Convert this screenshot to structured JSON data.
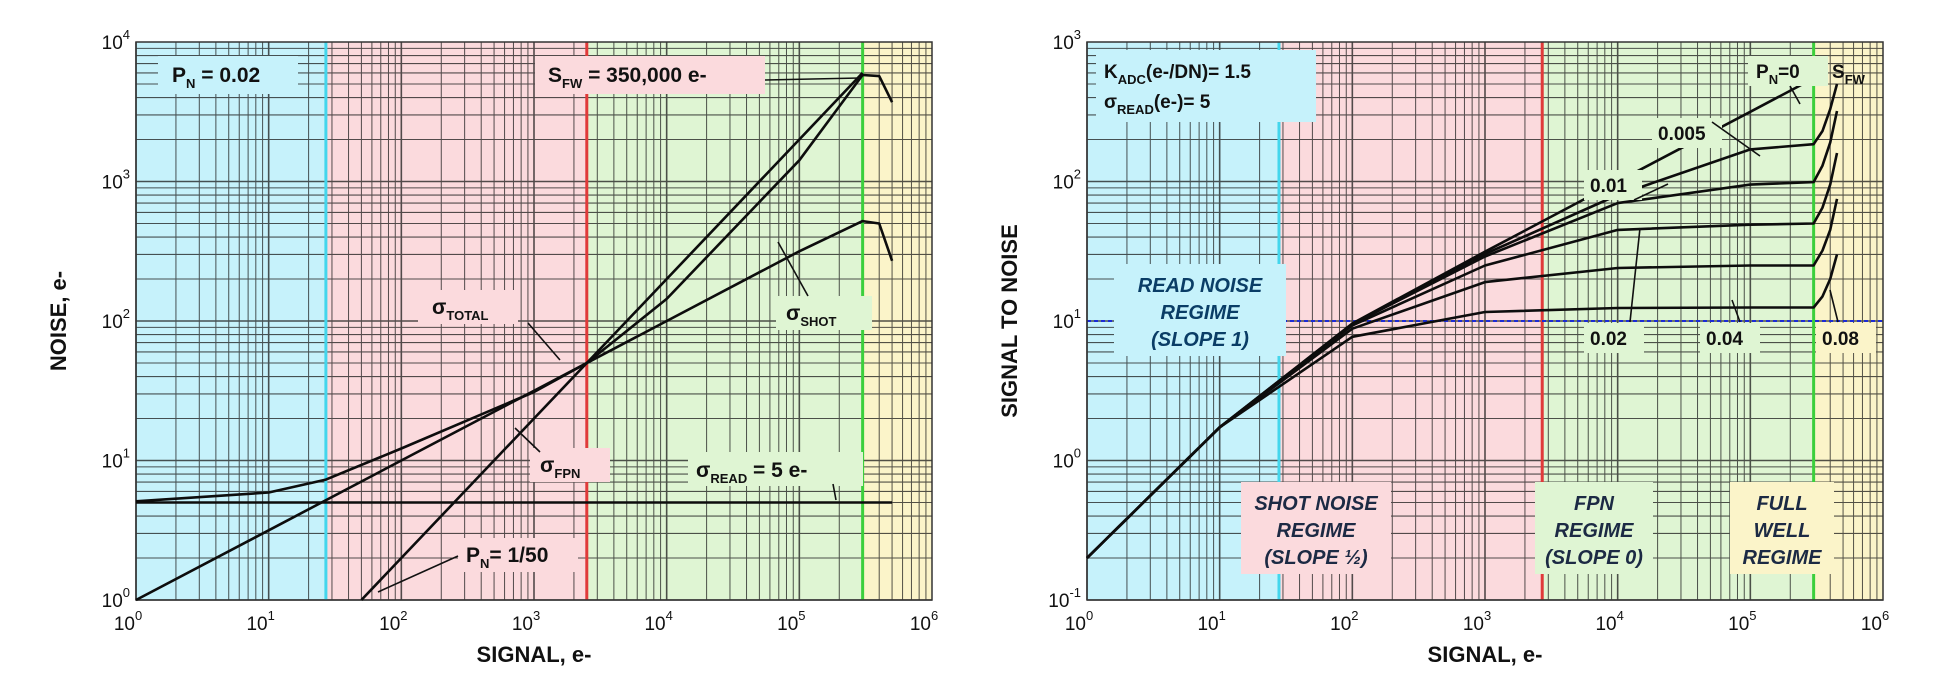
{
  "chart_data": [
    {
      "type": "line",
      "scale": "log-log",
      "xlabel": "SIGNAL, e-",
      "ylabel": "NOISE, e-",
      "xlim": [
        1,
        1000000
      ],
      "ylim": [
        1,
        10000
      ],
      "x_ticks": [
        "10",
        "10",
        "10",
        "10",
        "10",
        "10",
        "10"
      ],
      "x_tick_exps": [
        "0",
        "1",
        "2",
        "3",
        "4",
        "5",
        "6"
      ],
      "y_ticks": [
        "10",
        "10",
        "10",
        "10",
        "10"
      ],
      "y_tick_exps": [
        "0",
        "1",
        "2",
        "3",
        "4"
      ],
      "regions": [
        {
          "from": 1,
          "to": 27,
          "color": "#c6f2fb"
        },
        {
          "from": 27,
          "to": 2500,
          "color": "#fbdadd"
        },
        {
          "from": 2500,
          "to": 300000,
          "color": "#dff5d3"
        },
        {
          "from": 300000,
          "to": 1000000,
          "color": "#fbf4c9"
        }
      ],
      "boundaries": [
        {
          "x": 27,
          "color": "#44d6ec"
        },
        {
          "x": 2500,
          "color": "#e03a3a"
        },
        {
          "x": 300000,
          "color": "#3ccf3c"
        }
      ],
      "series": [
        {
          "name": "σ_TOTAL",
          "x": [
            1,
            10,
            27,
            100,
            1000,
            2500,
            10000,
            100000,
            300000,
            400000,
            500000
          ],
          "y": [
            5.1,
            5.9,
            7.3,
            12.2,
            31,
            50,
            144,
            1418,
            5800,
            5700,
            3700
          ]
        },
        {
          "name": "σ_SHOT",
          "x": [
            1,
            10,
            100,
            1000,
            10000,
            100000,
            300000,
            400000,
            500000
          ],
          "y": [
            1,
            3.16,
            10,
            31.6,
            100,
            316,
            520,
            500,
            270
          ]
        },
        {
          "name": "σ_FPN",
          "x": [
            50,
            100,
            1000,
            2500,
            10000,
            100000,
            300000
          ],
          "y": [
            1,
            2,
            20,
            50,
            200,
            2000,
            6000
          ]
        },
        {
          "name": "σ_READ",
          "x": [
            1,
            500000
          ],
          "y": [
            5,
            5
          ]
        }
      ],
      "labels": {
        "pn": "P",
        "pn_sub": "N",
        "pn_val": " = 0.02",
        "sfw": "S",
        "sfw_sub": "FW",
        "sfw_val": " = 350,000 e-",
        "total": "σ",
        "total_sub": "TOTAL",
        "shot": "σ",
        "shot_sub": "SHOT",
        "fpn": "σ",
        "fpn_sub": "FPN",
        "read": "σ",
        "read_sub": "READ",
        "read_val": " = 5 e-",
        "pn2": "P",
        "pn2_sub": "N",
        "pn2_val": "= 1/50"
      }
    },
    {
      "type": "line",
      "scale": "log-log",
      "xlabel": "SIGNAL, e-",
      "ylabel": "SIGNAL TO NOISE",
      "xlim": [
        1,
        1000000
      ],
      "ylim": [
        0.1,
        1000
      ],
      "x_ticks": [
        "10",
        "10",
        "10",
        "10",
        "10",
        "10",
        "10"
      ],
      "x_tick_exps": [
        "0",
        "1",
        "2",
        "3",
        "4",
        "5",
        "6"
      ],
      "y_ticks": [
        "10",
        "10",
        "10",
        "10",
        "10"
      ],
      "y_tick_exps": [
        "-1",
        "0",
        "1",
        "2",
        "3"
      ],
      "regions": [
        {
          "from": 1,
          "to": 28,
          "color": "#c6f2fb"
        },
        {
          "from": 28,
          "to": 2700,
          "color": "#fbdadd"
        },
        {
          "from": 2700,
          "to": 300000,
          "color": "#dff5d3"
        },
        {
          "from": 300000,
          "to": 1000000,
          "color": "#fbf4c9"
        }
      ],
      "boundaries": [
        {
          "x": 28,
          "color": "#44d6ec"
        },
        {
          "x": 2700,
          "color": "#e03a3a"
        },
        {
          "x": 300000,
          "color": "#3ccf3c"
        }
      ],
      "reference_line_y": 10,
      "series": [
        {
          "name": "0",
          "x": [
            1,
            10,
            100,
            1000,
            10000,
            100000,
            300000
          ],
          "y": [
            0.2,
            1.73,
            9.6,
            31.4,
            100,
            316,
            548
          ]
        },
        {
          "name": "0.005",
          "x": [
            1,
            10,
            100,
            1000,
            10000,
            100000,
            300000,
            350000,
            400000,
            450000
          ],
          "y": [
            0.2,
            1.73,
            9.5,
            30.2,
            80,
            170,
            185,
            230,
            330,
            500
          ]
        },
        {
          "name": "0.01",
          "x": [
            1,
            10,
            100,
            1000,
            10000,
            100000,
            300000,
            350000,
            400000,
            450000
          ],
          "y": [
            0.2,
            1.73,
            9.5,
            29,
            70,
            95,
            99,
            130,
            190,
            320
          ]
        },
        {
          "name": "0.02",
          "x": [
            1,
            10,
            100,
            1000,
            10000,
            100000,
            300000,
            350000,
            400000,
            450000
          ],
          "y": [
            0.2,
            1.73,
            9.3,
            25,
            45,
            49,
            50,
            65,
            95,
            160
          ]
        },
        {
          "name": "0.04",
          "x": [
            1,
            10,
            100,
            1000,
            10000,
            100000,
            300000,
            350000,
            400000,
            450000
          ],
          "y": [
            0.2,
            1.73,
            8.8,
            19,
            24,
            25,
            25,
            32,
            45,
            75
          ]
        },
        {
          "name": "0.08",
          "x": [
            1,
            10,
            100,
            1000,
            10000,
            100000,
            300000,
            350000,
            400000,
            450000
          ],
          "y": [
            0.2,
            1.73,
            7.7,
            11.6,
            12.4,
            12.5,
            12.5,
            15,
            20,
            30
          ]
        }
      ],
      "labels": {
        "kadc": "K",
        "kadc_sub": "ADC",
        "kadc_val": "(e-/DN)= 1.5",
        "sread": "σ",
        "sread_sub": "READ",
        "sread_val": "(e-)= 5",
        "pn0": "P",
        "pn0_sub": "N",
        "pn0_val": "=0",
        "sfw": "S",
        "sfw_sub": "FW",
        "c005": "0.005",
        "c01": "0.01",
        "c02": "0.02",
        "c04": "0.04",
        "c08": "0.08",
        "read_regime": [
          "READ NOISE",
          "REGIME",
          "(SLOPE 1)"
        ],
        "shot_regime": [
          "SHOT NOISE",
          "REGIME",
          "(SLOPE ½)"
        ],
        "fpn_regime": [
          "FPN",
          "REGIME",
          "(SLOPE 0)"
        ],
        "full_regime": [
          "FULL",
          "WELL",
          "REGIME"
        ]
      }
    }
  ]
}
